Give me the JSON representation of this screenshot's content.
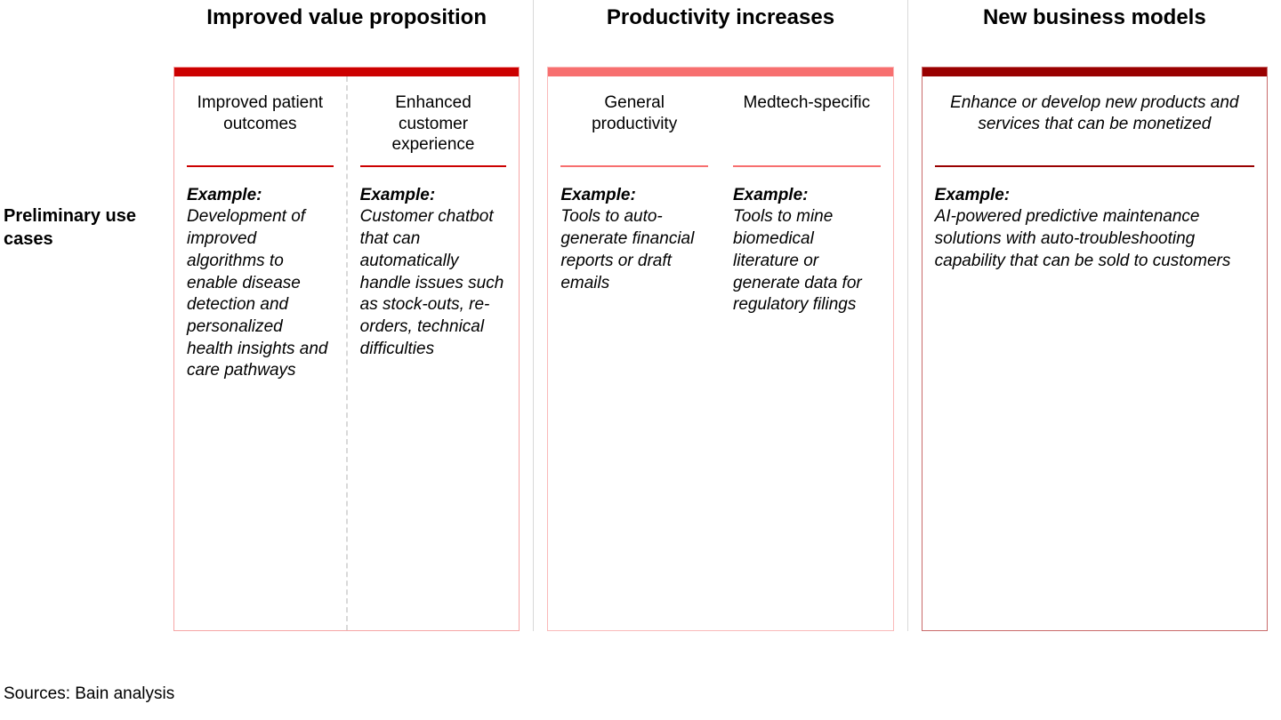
{
  "layout": {
    "row_label": "Preliminary use cases",
    "sources": "Sources: Bain analysis",
    "example_label": "Example:",
    "divider_color": "#d9d9d9"
  },
  "columns": [
    {
      "id": "value-prop",
      "title": "Improved value proposition",
      "topbar_color": "#cc0000",
      "border_color": "#f6a6a6",
      "rule_color": "#cc0000",
      "dashed_internal_divider": true,
      "subcolumns": [
        {
          "id": "patient-outcomes",
          "header": "Improved patient outcomes",
          "header_italic": false,
          "example": "Development of improved algorithms to enable disease detection and personalized health insights and care pathways"
        },
        {
          "id": "customer-experience",
          "header": "Enhanced customer experience",
          "header_italic": false,
          "example": "Customer chatbot that can automatically handle issues such as stock-outs, re-orders, technical difficulties"
        }
      ]
    },
    {
      "id": "productivity",
      "title": "Productivity increases",
      "topbar_color": "#f76f6f",
      "border_color": "#fab9b9",
      "rule_color": "#f76f6f",
      "dashed_internal_divider": false,
      "subcolumns": [
        {
          "id": "general-productivity",
          "header": "General productivity",
          "header_italic": false,
          "example": "Tools to auto-generate financial reports or draft emails"
        },
        {
          "id": "medtech-specific",
          "header": "Medtech-specific",
          "header_italic": false,
          "example": "Tools to mine biomedical literature or generate data for regulatory filings"
        }
      ]
    },
    {
      "id": "new-business",
      "title": "New business models",
      "topbar_color": "#990000",
      "border_color": "#c96a6a",
      "rule_color": "#990000",
      "dashed_internal_divider": false,
      "subcolumns": [
        {
          "id": "new-products",
          "header": "Enhance or develop new products and services that can be monetized",
          "header_italic": true,
          "example": "AI-powered predictive maintenance solutions with auto-troubleshooting capability that can be sold to customers"
        }
      ]
    }
  ]
}
